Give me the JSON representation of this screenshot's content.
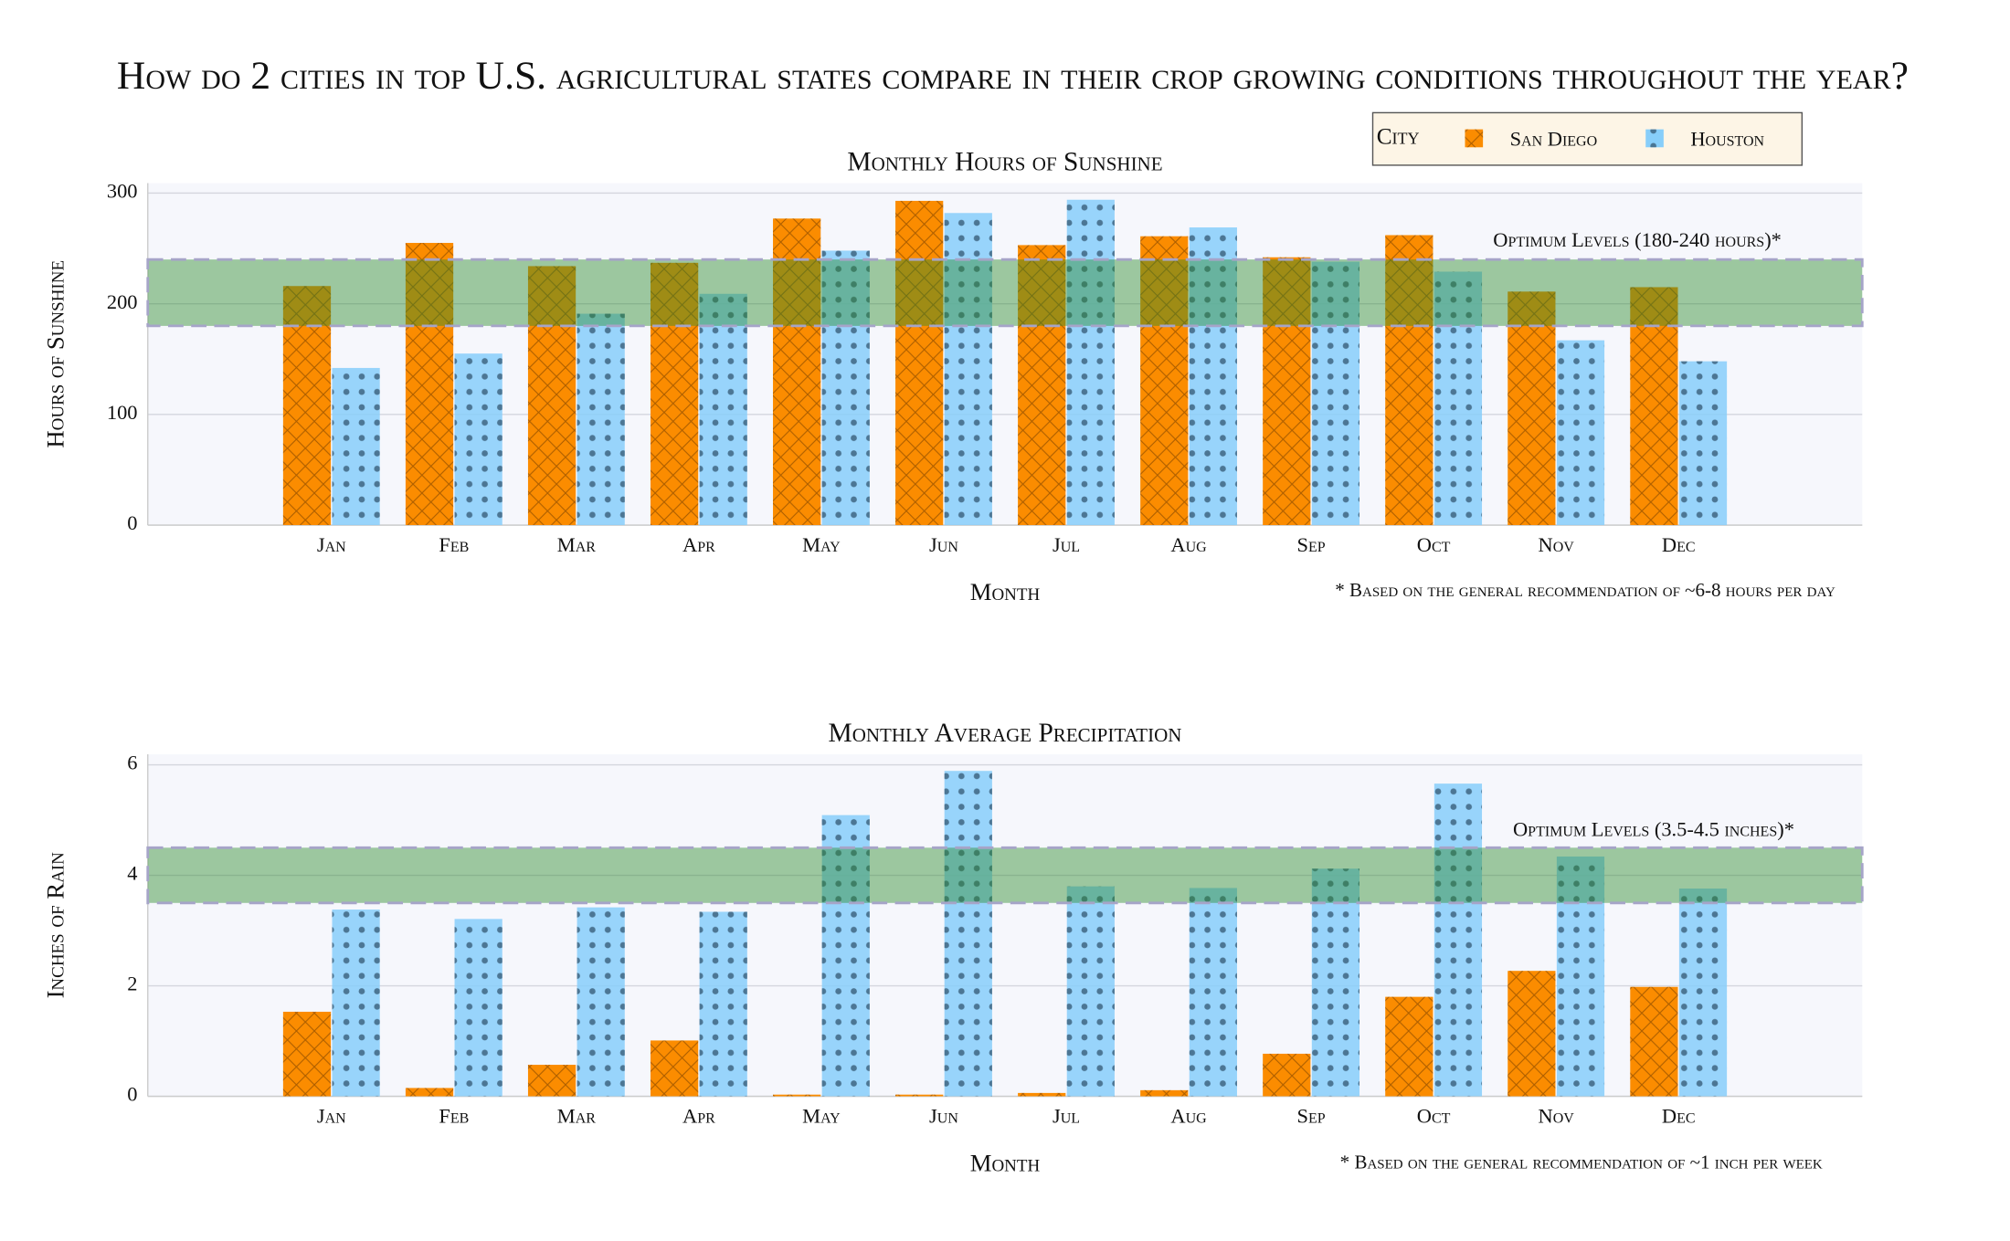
{
  "title": "How do 2 cities in top U.S. agricultural states compare in their crop growing conditions throughout the year?",
  "legend_title": "City",
  "chart_data": [
    {
      "type": "bar",
      "title": "Monthly Hours of Sunshine",
      "x_title": "Month",
      "y_title": "Hours of Sunshine",
      "categories": [
        "Jan",
        "Feb",
        "Mar",
        "Apr",
        "May",
        "Jun",
        "Jul",
        "Aug",
        "Sep",
        "Oct",
        "Nov",
        "Dec"
      ],
      "series": [
        {
          "name": "San Diego",
          "color": "#fb8c00",
          "values": [
            216,
            255,
            234,
            237,
            277,
            293,
            253,
            261,
            242,
            262,
            211,
            215
          ]
        },
        {
          "name": "Houston",
          "color": "#87cefa",
          "values": [
            142,
            155,
            191,
            209,
            248,
            282,
            294,
            269,
            238,
            229,
            167,
            148
          ]
        }
      ],
      "ylim": [
        0,
        309
      ],
      "yticks": [
        0,
        100,
        200,
        300
      ],
      "grid": true,
      "optimum": {
        "range": [
          180,
          240
        ],
        "label": "Optimum Levels (180-240 hours)*",
        "color": "#2e8b2e"
      },
      "footnote": "* Based on the general recommendation of ~6-8 hours per day"
    },
    {
      "type": "bar",
      "title": "Monthly Average Precipitation",
      "x_title": "Month",
      "y_title": "Inches of Rain",
      "categories": [
        "Jan",
        "Feb",
        "Mar",
        "Apr",
        "May",
        "Jun",
        "Jul",
        "Aug",
        "Sep",
        "Oct",
        "Nov",
        "Dec"
      ],
      "series": [
        {
          "name": "San Diego",
          "color": "#fb8c00",
          "values": [
            1.53,
            0.15,
            0.57,
            1.01,
            0.03,
            0.03,
            0.06,
            0.11,
            0.77,
            1.8,
            2.27,
            1.98
          ]
        },
        {
          "name": "Houston",
          "color": "#87cefa",
          "values": [
            3.38,
            3.21,
            3.42,
            3.34,
            5.09,
            5.89,
            3.8,
            3.77,
            4.12,
            5.66,
            4.34,
            3.76
          ]
        }
      ],
      "ylim": [
        0,
        6.19
      ],
      "yticks": [
        0,
        2,
        4,
        6
      ],
      "grid": true,
      "optimum": {
        "range": [
          3.5,
          4.5
        ],
        "label": "Optimum Levels (3.5-4.5 inches)*",
        "color": "#2e8b2e"
      },
      "footnote": "* Based on the general recommendation of ~1 inch per week"
    }
  ]
}
